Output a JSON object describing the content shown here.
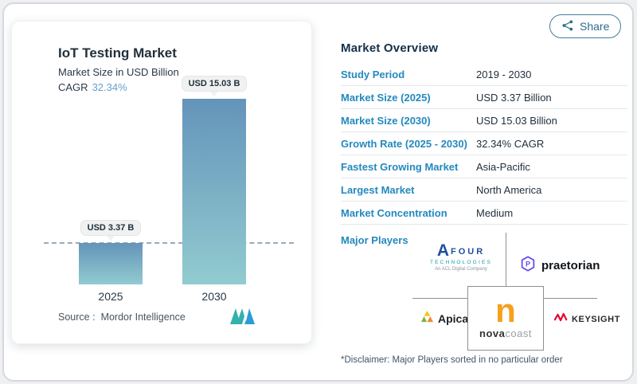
{
  "share": {
    "label": "Share"
  },
  "chart": {
    "title": "IoT Testing Market",
    "subtitle": "Market Size in USD Billion",
    "cagr_label": "CAGR",
    "cagr_value": "32.34%",
    "source_label": "Source :",
    "source_value": "Mordor Intelligence",
    "bars": [
      {
        "year": "2025",
        "label": "USD 3.37 B"
      },
      {
        "year": "2030",
        "label": "USD 15.03 B"
      }
    ]
  },
  "chart_data": {
    "type": "bar",
    "categories": [
      "2025",
      "2030"
    ],
    "values": [
      3.37,
      15.03
    ],
    "title": "IoT Testing Market",
    "subtitle": "Market Size in USD Billion",
    "xlabel": "",
    "ylabel": "Market Size in USD Billion",
    "ylim": [
      0,
      16.5
    ],
    "data_labels": [
      "USD 3.37 B",
      "USD 15.03 B"
    ],
    "annotations": [
      "CAGR 32.34%",
      "dashed reference line at 3.37"
    ],
    "grid": false,
    "legend": false
  },
  "overview": {
    "heading": "Market Overview",
    "rows": [
      {
        "label": "Study Period",
        "value": "2019 - 2030"
      },
      {
        "label": "Market Size (2025)",
        "value": "USD 3.37 Billion"
      },
      {
        "label": "Market Size (2030)",
        "value": "USD 15.03 Billion"
      },
      {
        "label": "Growth Rate (2025 - 2030)",
        "value": "32.34% CAGR"
      },
      {
        "label": "Fastest Growing Market",
        "value": "Asia-Pacific"
      },
      {
        "label": "Largest Market",
        "value": "North America"
      },
      {
        "label": "Market Concentration",
        "value": "Medium"
      }
    ],
    "major_players_label": "Major Players",
    "players": {
      "afour": {
        "a": "A",
        "four": "FOUR",
        "tech": "TECHNOLOGIES",
        "tagline": "An ACL Digital Company"
      },
      "praetorian": {
        "name": "praetorian",
        "icon_letter": "P"
      },
      "apica": {
        "name": "Apica."
      },
      "novacoast": {
        "n": "n",
        "nova": "nova",
        "coast": "coast"
      },
      "keysight": {
        "name": "KEYSIGHT"
      }
    },
    "disclaimer": "*Disclaimer: Major Players sorted in no particular order"
  },
  "colors": {
    "accent_blue": "#2389be",
    "heading_navy": "#14304a",
    "text_dark": "#1f2d3a",
    "bar_top": "#6494ba",
    "bar_bottom": "#92cbd0",
    "cagr_blue": "#64a0cd",
    "share_teal": "#2e6d8d",
    "divider": "#e3e6e8",
    "connector_gray": "#8c9196",
    "pill_bg": "#eff2f0",
    "disclaimer": "#3f5569",
    "afour_blue": "#1f4f9e",
    "afour_teal": "#12a0aa",
    "praetorian_purple": "#6d4ef0",
    "apica_yellow": "#f4c20d",
    "apica_orange": "#ef8b2d",
    "apica_green": "#7cb342",
    "novacoast_orange": "#f6a01b",
    "keysight_red": "#e8002d",
    "mi_teal": "#35b0ac",
    "mi_blue": "#2b9cd8"
  }
}
